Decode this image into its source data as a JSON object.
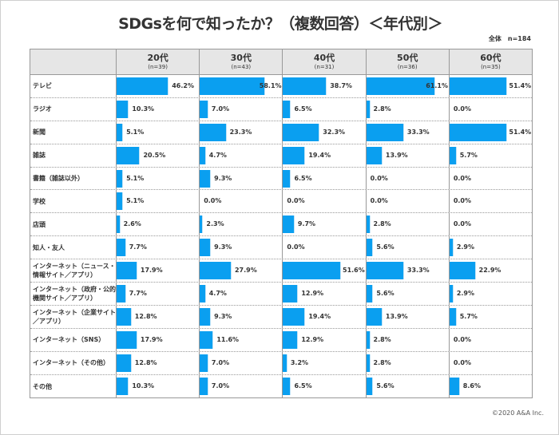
{
  "chart_data": {
    "type": "bar",
    "title": "SDGsを何で知ったか？（複数回答）＜年代別＞",
    "total_label": "全体　n=184",
    "groups": [
      {
        "label": "20代",
        "n": "(n=39)"
      },
      {
        "label": "30代",
        "n": "(n=43)"
      },
      {
        "label": "40代",
        "n": "(n=31)"
      },
      {
        "label": "50代",
        "n": "(n=36)"
      },
      {
        "label": "60代",
        "n": "(n=35)"
      }
    ],
    "categories": [
      "テレビ",
      "ラジオ",
      "新聞",
      "雑誌",
      "書籍（雑誌以外）",
      "学校",
      "店頭",
      "知人・友人",
      "インターネット（ニュース・情報サイト／アプリ）",
      "インターネット（政府・公的機関サイト／アプリ）",
      "インターネット（企業サイト／アプリ）",
      "インターネット（SNS）",
      "インターネット（その他）",
      "その他"
    ],
    "series": [
      {
        "values": [
          46.2,
          10.3,
          5.1,
          20.5,
          5.1,
          5.1,
          2.6,
          7.7,
          17.9,
          7.7,
          12.8,
          17.9,
          12.8,
          10.3
        ]
      },
      {
        "values": [
          58.1,
          7.0,
          23.3,
          4.7,
          9.3,
          0.0,
          2.3,
          9.3,
          27.9,
          4.7,
          9.3,
          11.6,
          7.0,
          7.0
        ]
      },
      {
        "values": [
          38.7,
          6.5,
          32.3,
          19.4,
          6.5,
          0.0,
          9.7,
          0.0,
          51.6,
          12.9,
          19.4,
          12.9,
          3.2,
          6.5
        ]
      },
      {
        "values": [
          61.1,
          2.8,
          33.3,
          13.9,
          0.0,
          0.0,
          2.8,
          5.6,
          33.3,
          5.6,
          13.9,
          2.8,
          2.8,
          5.6
        ]
      },
      {
        "values": [
          51.4,
          0.0,
          51.4,
          5.7,
          0.0,
          0.0,
          0.0,
          2.9,
          22.9,
          2.9,
          5.7,
          0.0,
          0.0,
          8.6
        ]
      }
    ],
    "unit": "%",
    "bar_color": "#0a9ff0"
  },
  "copyright": "©2020 A&A Inc."
}
